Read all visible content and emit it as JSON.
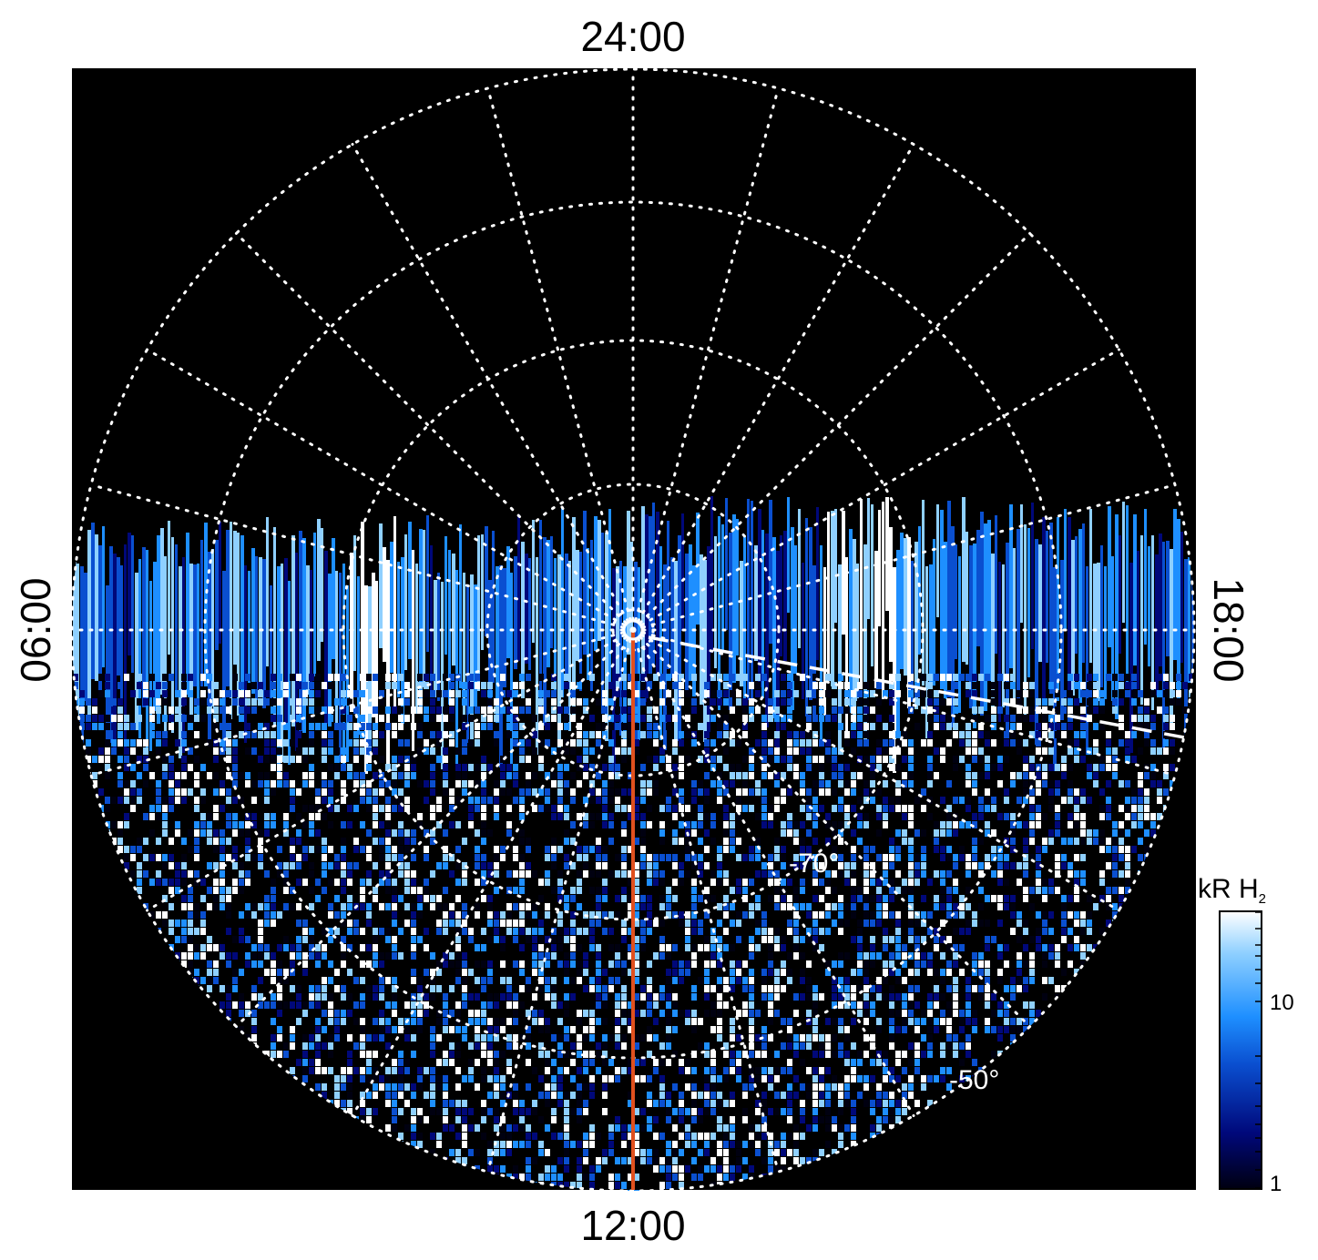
{
  "projection": {
    "type": "polar-stereographic",
    "hemisphere": "south",
    "local_time_labels": {
      "top": "24:00",
      "bottom": "12:00",
      "left": "06:00",
      "right": "18:00"
    },
    "latitude_labels": [
      "-70°",
      "-50°"
    ],
    "grid": "on",
    "grid_style": "dotted"
  },
  "colorbar": {
    "title": "kR H",
    "title_subscript": "2",
    "tick_labels": [
      "10",
      "1"
    ],
    "scale": "log",
    "colors": [
      "#000010",
      "#00087a",
      "#0a4fd0",
      "#1e8fff",
      "#8fd0ff",
      "#ffffff"
    ]
  },
  "background_color": "#000000",
  "grid_color": "#ffffff",
  "meridian_color": "#e0501e"
}
